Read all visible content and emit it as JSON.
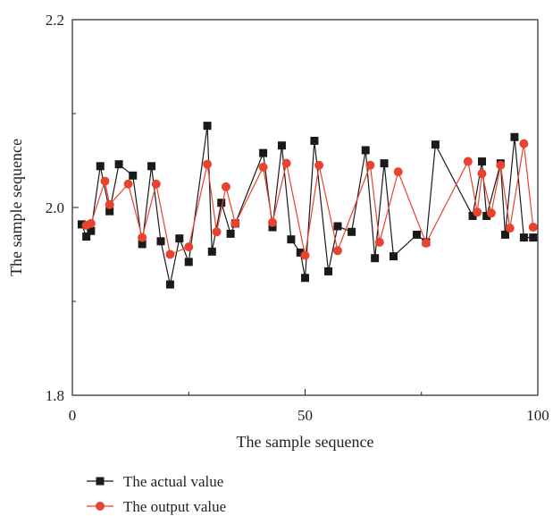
{
  "chart_data": {
    "type": "line",
    "title": "",
    "xlabel": "The sample sequence",
    "ylabel": "The sample sequence",
    "xlim": [
      0,
      100
    ],
    "ylim": [
      1.8,
      2.2
    ],
    "xticks": [
      "0",
      "50",
      "100"
    ],
    "yticks": [
      "1.8",
      "2.0",
      "2.2"
    ],
    "grid": false,
    "legend_position": "bottom-left",
    "series": [
      {
        "name": "The actual value",
        "color": "#1a1a1a",
        "marker": "square",
        "x": [
          2,
          3,
          4,
          6,
          8,
          10,
          13,
          15,
          17,
          19,
          21,
          23,
          25,
          29,
          30,
          32,
          34,
          35,
          41,
          43,
          45,
          47,
          49,
          50,
          52,
          55,
          57,
          60,
          63,
          65,
          67,
          69,
          74,
          76,
          78,
          86,
          88,
          89,
          92,
          93,
          95,
          97,
          99
        ],
        "y": [
          1.982,
          1.969,
          1.975,
          2.044,
          1.996,
          2.046,
          2.034,
          1.961,
          2.044,
          1.964,
          1.918,
          1.967,
          1.942,
          2.087,
          1.953,
          2.005,
          1.972,
          1.983,
          2.058,
          1.979,
          2.066,
          1.966,
          1.952,
          1.925,
          2.071,
          1.932,
          1.98,
          1.974,
          2.061,
          1.946,
          2.047,
          1.948,
          1.971,
          1.963,
          2.067,
          1.991,
          2.049,
          1.991,
          2.047,
          1.971,
          2.075,
          1.968,
          1.968
        ]
      },
      {
        "name": "The output value",
        "color": "#e8432e",
        "marker": "circle",
        "x": [
          3,
          4,
          7,
          8,
          12,
          15,
          18,
          21,
          25,
          29,
          31,
          33,
          35,
          41,
          43,
          46,
          50,
          53,
          57,
          64,
          66,
          70,
          76,
          85,
          87,
          88,
          90,
          92,
          94,
          97,
          99
        ],
        "y": [
          1.981,
          1.983,
          2.028,
          2.003,
          2.025,
          1.968,
          2.025,
          1.95,
          1.958,
          2.046,
          1.974,
          2.022,
          1.983,
          2.043,
          1.984,
          2.047,
          1.949,
          2.045,
          1.954,
          2.045,
          1.963,
          2.038,
          1.962,
          2.049,
          1.995,
          2.036,
          1.994,
          2.045,
          1.978,
          2.068,
          1.979
        ]
      }
    ]
  }
}
